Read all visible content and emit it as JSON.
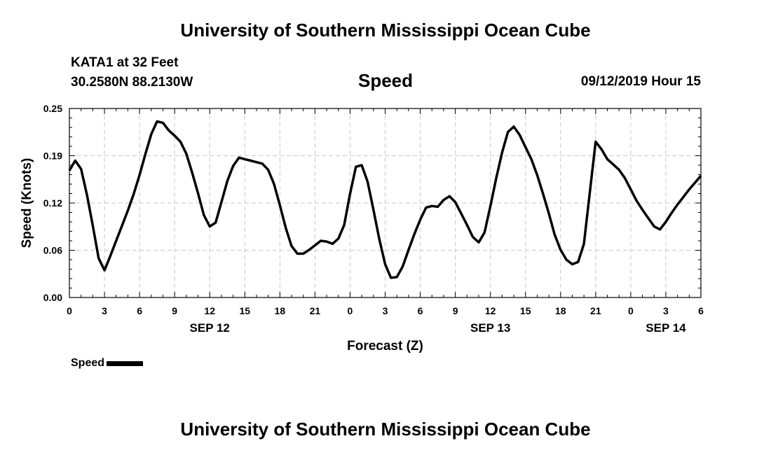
{
  "page": {
    "title_top": "University of Southern Mississippi Ocean Cube",
    "title_bottom": "University of Southern Mississippi Ocean Cube",
    "station_name": "KATA1 at 32 Feet",
    "station_coords": "30.2580N 88.2130W",
    "datetime": "09/12/2019 Hour 15"
  },
  "chart_data": {
    "type": "line",
    "title": "Speed",
    "xlabel": "Forecast (Z)",
    "ylabel": "Speed (Knots)",
    "ylim": [
      0,
      0.25
    ],
    "yticks": [
      "0.00",
      "0.06",
      "0.12",
      "0.19",
      "0.25"
    ],
    "ytick_values": [
      0,
      0.0625,
      0.125,
      0.1875,
      0.25
    ],
    "xlim": [
      0,
      54
    ],
    "xticks": [
      0,
      3,
      6,
      9,
      12,
      15,
      18,
      21,
      24,
      27,
      30,
      33,
      36,
      39,
      42,
      45,
      48,
      51,
      54
    ],
    "xtick_labels": [
      "0",
      "3",
      "6",
      "9",
      "12",
      "15",
      "18",
      "21",
      "0",
      "3",
      "6",
      "9",
      "12",
      "15",
      "18",
      "21",
      "0",
      "3",
      "6"
    ],
    "date_labels": [
      {
        "label": "SEP 12",
        "x": 12
      },
      {
        "label": "SEP 13",
        "x": 36
      },
      {
        "label": "SEP 14",
        "x": 51
      }
    ],
    "grid": true,
    "legend": "bottom-left",
    "series": [
      {
        "name": "Speed",
        "color": "#000000",
        "x": [
          0,
          0.5,
          1,
          1.5,
          2,
          2.5,
          3,
          3.5,
          4,
          4.5,
          5,
          5.5,
          6,
          6.5,
          7,
          7.5,
          8,
          8.5,
          9,
          9.5,
          10,
          10.5,
          11,
          11.5,
          12,
          12.5,
          13,
          13.5,
          14,
          14.5,
          15,
          15.5,
          16,
          16.5,
          17,
          17.5,
          18,
          18.5,
          19,
          19.5,
          20,
          20.5,
          21,
          21.5,
          22,
          22.5,
          23,
          23.5,
          24,
          24.5,
          25,
          25.5,
          26,
          26.5,
          27,
          27.5,
          28,
          28.5,
          29,
          29.5,
          30,
          30.5,
          31,
          31.5,
          32,
          32.5,
          33,
          33.5,
          34,
          34.5,
          35,
          35.5,
          36,
          36.5,
          37,
          37.5,
          38,
          38.5,
          39,
          39.5,
          40,
          40.5,
          41,
          41.5,
          42,
          42.5,
          43,
          43.5,
          44,
          44.5,
          45,
          45.5,
          46,
          46.5,
          47,
          47.5,
          48,
          48.5,
          49,
          49.5,
          50,
          50.5,
          51,
          51.5,
          52,
          52.5,
          53,
          53.5,
          54
        ],
        "y": [
          0.168,
          0.181,
          0.17,
          0.136,
          0.095,
          0.052,
          0.036,
          0.055,
          0.075,
          0.095,
          0.115,
          0.137,
          0.162,
          0.19,
          0.216,
          0.233,
          0.231,
          0.221,
          0.214,
          0.206,
          0.19,
          0.165,
          0.138,
          0.109,
          0.094,
          0.099,
          0.126,
          0.154,
          0.174,
          0.185,
          0.183,
          0.181,
          0.179,
          0.177,
          0.169,
          0.15,
          0.122,
          0.092,
          0.068,
          0.058,
          0.058,
          0.063,
          0.069,
          0.075,
          0.074,
          0.071,
          0.078,
          0.096,
          0.137,
          0.173,
          0.175,
          0.153,
          0.116,
          0.077,
          0.044,
          0.026,
          0.027,
          0.041,
          0.063,
          0.084,
          0.103,
          0.119,
          0.121,
          0.12,
          0.129,
          0.134,
          0.126,
          0.111,
          0.096,
          0.08,
          0.073,
          0.086,
          0.121,
          0.158,
          0.192,
          0.219,
          0.226,
          0.215,
          0.199,
          0.183,
          0.162,
          0.137,
          0.111,
          0.083,
          0.063,
          0.05,
          0.044,
          0.047,
          0.071,
          0.139,
          0.206,
          0.196,
          0.183,
          0.176,
          0.169,
          0.158,
          0.143,
          0.128,
          0.116,
          0.105,
          0.094,
          0.09,
          0.1,
          0.112,
          0.123,
          0.133,
          0.143,
          0.152,
          0.161
        ]
      }
    ]
  }
}
